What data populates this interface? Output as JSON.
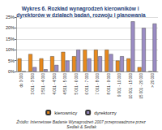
{
  "chart_data": {
    "type": "bar",
    "title": "Wykres 6. Rozkład wynagrodzeń kierowników i dyrektorów w działach badań, rozwoju i planowania",
    "source": "Źródło: Internetowe Badanie Wynagrodzeń 2007 przeprowadzone przez Sedlak & Sedlak",
    "categories": [
      "do 3 000",
      "3 001 - 3 500",
      "3 501 - 4 000",
      "4 001 - 4 500",
      "4 501 - 5 000",
      "5 001 - 6 000",
      "6 001 - 7 000",
      "7 001 - 8 000",
      "8 001 - 9 000",
      "9 001 - 10 000",
      "10 001 - 15 000",
      "15 001 - 20 000",
      "> 20 000"
    ],
    "series": [
      {
        "name": "kierownicy",
        "color": "#e8891c",
        "values": [
          6,
          8,
          6,
          7,
          9,
          7,
          10,
          10,
          10,
          5,
          6,
          2,
          0
        ]
      },
      {
        "name": "dyrektorzy",
        "color": "#9b8cc4",
        "values": [
          0,
          2,
          1,
          3,
          5,
          10,
          6,
          7,
          8,
          7,
          23,
          20,
          22
        ]
      }
    ],
    "ylim": [
      0,
      25
    ],
    "yticks": [
      {
        "value": 0,
        "label": "0%"
      },
      {
        "value": 5,
        "label": "5%"
      },
      {
        "value": 10,
        "label": "10%"
      },
      {
        "value": 15,
        "label": "15%"
      },
      {
        "value": 20,
        "label": "20%"
      },
      {
        "value": 25,
        "label": "25%"
      }
    ],
    "grid": true,
    "legend": "bottom"
  }
}
